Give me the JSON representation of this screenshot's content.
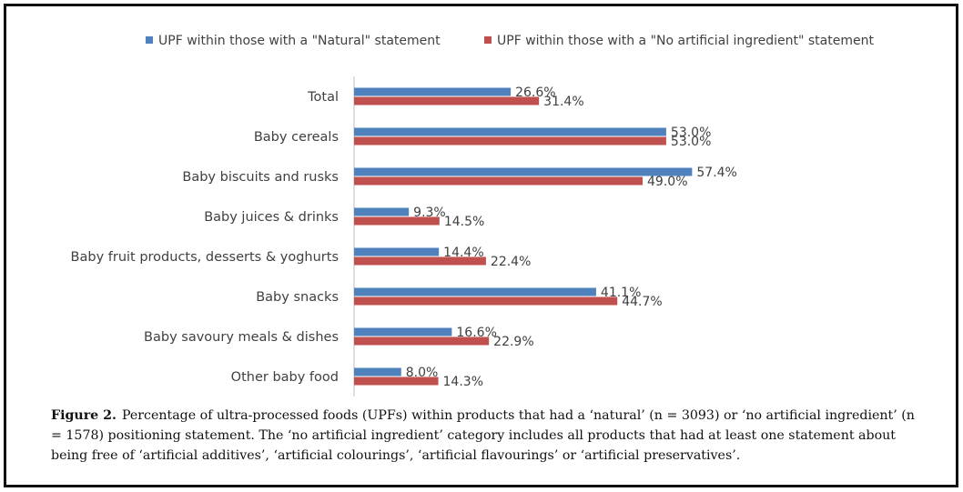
{
  "chart_data": {
    "type": "bar",
    "orientation": "horizontal",
    "categories": [
      "Total",
      "Baby cereals",
      "Baby biscuits and rusks",
      "Baby juices & drinks",
      "Baby fruit products, desserts & yoghurts",
      "Baby snacks",
      "Baby savoury meals & dishes",
      "Other baby food"
    ],
    "series": [
      {
        "name": "UPF within those with a \"Natural\" statement",
        "color": "#4f81bd",
        "values": [
          26.6,
          53.0,
          57.4,
          9.3,
          14.4,
          41.1,
          16.6,
          8.0
        ],
        "labels": [
          "26.6%",
          "53.0%",
          "57.4%",
          "9.3%",
          "14.4%",
          "41.1%",
          "16.6%",
          "8.0%"
        ]
      },
      {
        "name": "UPF within those with a \"No artificial ingredient\" statement",
        "color": "#c0504d",
        "values": [
          31.4,
          53.0,
          49.0,
          14.5,
          22.4,
          44.7,
          22.9,
          14.3
        ],
        "labels": [
          "31.4%",
          "53.0%",
          "49.0%",
          "14.5%",
          "22.4%",
          "44.7%",
          "22.9%",
          "14.3%"
        ]
      }
    ],
    "xlim": [
      0,
      100
    ],
    "grid": false,
    "legend_position": "top"
  },
  "caption": {
    "lead": "Figure 2.",
    "text": "Percentage of ultra-processed foods (UPFs) within products that had a ‘natural’ (n = 3093) or ‘no artificial ingredient’ (n = 1578) positioning statement. The ‘no artificial ingredient’ category includes all products that had at least one statement about being free of ‘artificial additives’, ‘artificial colourings’, ‘artificial flavourings’ or ‘artificial preservatives’."
  }
}
